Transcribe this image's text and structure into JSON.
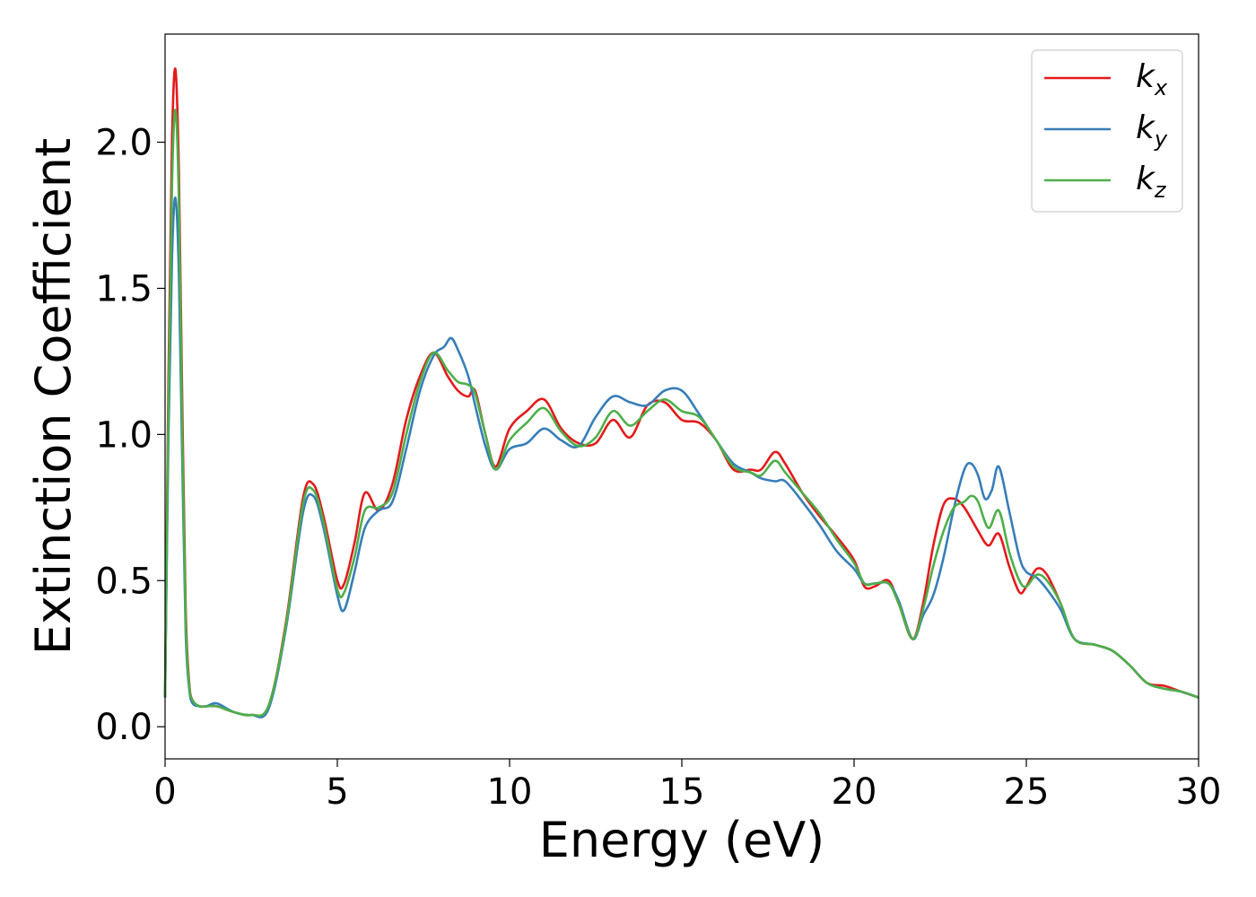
{
  "chart_data": {
    "type": "line",
    "xlabel": "Energy (eV)",
    "ylabel": "Extinction Coefficient",
    "xlim": [
      0,
      30
    ],
    "ylim": [
      -0.11,
      2.37
    ],
    "xticks": [
      0,
      5,
      10,
      15,
      20,
      25,
      30
    ],
    "xtick_labels": [
      "0",
      "5",
      "10",
      "15",
      "20",
      "25",
      "30"
    ],
    "yticks": [
      0.0,
      0.5,
      1.0,
      1.5,
      2.0
    ],
    "ytick_labels": [
      "0.0",
      "0.5",
      "1.0",
      "1.5",
      "2.0"
    ],
    "grid": false,
    "legend_position": "top-right",
    "series": [
      {
        "name": "k",
        "subscript": "x",
        "color": "#e41a1c",
        "x": [
          0,
          0.1,
          0.2,
          0.3,
          0.4,
          0.5,
          0.6,
          0.7,
          0.8,
          1.0,
          1.2,
          1.5,
          2.0,
          2.5,
          3.0,
          3.5,
          4.0,
          4.3,
          4.6,
          5.0,
          5.2,
          5.5,
          5.8,
          6.2,
          6.6,
          7.0,
          7.4,
          7.8,
          8.2,
          8.5,
          8.8,
          9.0,
          9.3,
          9.6,
          10.0,
          10.5,
          11.0,
          11.5,
          12.0,
          12.5,
          13.0,
          13.5,
          14.0,
          14.5,
          15.0,
          15.5,
          16.0,
          16.5,
          17.0,
          17.3,
          17.7,
          18.0,
          18.5,
          19.0,
          19.5,
          20.0,
          20.3,
          20.6,
          21.0,
          21.3,
          21.7,
          22.0,
          22.3,
          22.6,
          22.9,
          23.2,
          23.6,
          23.9,
          24.2,
          24.5,
          24.8,
          25.0,
          25.3,
          25.6,
          26.0,
          26.4,
          27.0,
          27.5,
          28.0,
          28.5,
          29.0,
          29.5,
          30.0
        ],
        "values": [
          0.1,
          1.2,
          2.0,
          2.25,
          1.9,
          1.1,
          0.4,
          0.15,
          0.09,
          0.07,
          0.07,
          0.07,
          0.05,
          0.04,
          0.07,
          0.35,
          0.78,
          0.83,
          0.72,
          0.5,
          0.49,
          0.63,
          0.8,
          0.74,
          0.83,
          1.05,
          1.2,
          1.28,
          1.2,
          1.15,
          1.13,
          1.15,
          1.0,
          0.89,
          1.02,
          1.08,
          1.12,
          1.02,
          0.97,
          0.97,
          1.05,
          0.99,
          1.1,
          1.11,
          1.05,
          1.04,
          0.98,
          0.88,
          0.88,
          0.88,
          0.94,
          0.9,
          0.8,
          0.72,
          0.65,
          0.57,
          0.48,
          0.48,
          0.5,
          0.42,
          0.3,
          0.42,
          0.62,
          0.76,
          0.78,
          0.75,
          0.67,
          0.62,
          0.66,
          0.55,
          0.46,
          0.48,
          0.54,
          0.52,
          0.42,
          0.3,
          0.28,
          0.26,
          0.21,
          0.15,
          0.14,
          0.12,
          0.1
        ]
      },
      {
        "name": "k",
        "subscript": "y",
        "color": "#377eb8",
        "x": [
          0,
          0.1,
          0.2,
          0.3,
          0.4,
          0.5,
          0.6,
          0.7,
          0.8,
          1.0,
          1.2,
          1.5,
          2.0,
          2.5,
          3.0,
          3.5,
          4.0,
          4.3,
          4.6,
          5.0,
          5.2,
          5.5,
          5.8,
          6.2,
          6.6,
          7.0,
          7.4,
          7.8,
          8.1,
          8.3,
          8.5,
          8.8,
          9.0,
          9.3,
          9.6,
          10.0,
          10.5,
          11.0,
          11.5,
          12.0,
          12.5,
          13.0,
          13.5,
          14.0,
          14.5,
          15.0,
          15.5,
          16.0,
          16.5,
          17.0,
          17.3,
          17.7,
          18.0,
          18.5,
          19.0,
          19.5,
          20.0,
          20.3,
          20.6,
          21.0,
          21.3,
          21.7,
          22.0,
          22.3,
          22.6,
          22.9,
          23.2,
          23.4,
          23.6,
          23.8,
          24.0,
          24.2,
          24.5,
          24.8,
          25.0,
          25.3,
          25.6,
          26.0,
          26.4,
          27.0,
          27.5,
          28.0,
          28.5,
          29.0,
          29.5,
          30.0
        ],
        "values": [
          0.1,
          1.0,
          1.6,
          1.81,
          1.55,
          0.9,
          0.32,
          0.13,
          0.08,
          0.07,
          0.07,
          0.08,
          0.05,
          0.04,
          0.06,
          0.33,
          0.73,
          0.79,
          0.68,
          0.45,
          0.4,
          0.53,
          0.68,
          0.74,
          0.77,
          0.95,
          1.15,
          1.27,
          1.3,
          1.33,
          1.29,
          1.2,
          1.1,
          0.96,
          0.88,
          0.95,
          0.97,
          1.02,
          0.98,
          0.96,
          1.06,
          1.13,
          1.11,
          1.1,
          1.15,
          1.15,
          1.07,
          0.98,
          0.9,
          0.87,
          0.85,
          0.84,
          0.84,
          0.77,
          0.69,
          0.6,
          0.54,
          0.49,
          0.49,
          0.49,
          0.43,
          0.3,
          0.38,
          0.45,
          0.58,
          0.75,
          0.88,
          0.9,
          0.86,
          0.78,
          0.81,
          0.89,
          0.74,
          0.58,
          0.53,
          0.51,
          0.47,
          0.4,
          0.3,
          0.28,
          0.26,
          0.21,
          0.15,
          0.13,
          0.12,
          0.1
        ]
      },
      {
        "name": "k",
        "subscript": "z",
        "color": "#4daf4a",
        "x": [
          0,
          0.1,
          0.2,
          0.3,
          0.4,
          0.5,
          0.6,
          0.7,
          0.8,
          1.0,
          1.2,
          1.5,
          2.0,
          2.5,
          3.0,
          3.5,
          4.0,
          4.3,
          4.6,
          5.0,
          5.2,
          5.5,
          5.8,
          6.2,
          6.6,
          7.0,
          7.4,
          7.8,
          8.2,
          8.5,
          8.8,
          9.0,
          9.3,
          9.6,
          10.0,
          10.5,
          11.0,
          11.5,
          12.0,
          12.5,
          13.0,
          13.5,
          14.0,
          14.5,
          15.0,
          15.5,
          16.0,
          16.5,
          17.0,
          17.3,
          17.7,
          18.0,
          18.5,
          19.0,
          19.5,
          20.0,
          20.3,
          20.6,
          21.0,
          21.3,
          21.7,
          22.0,
          22.3,
          22.6,
          22.9,
          23.2,
          23.4,
          23.6,
          23.9,
          24.2,
          24.5,
          24.8,
          25.0,
          25.3,
          25.6,
          26.0,
          26.4,
          27.0,
          27.5,
          28.0,
          28.5,
          29.0,
          29.5,
          30.0
        ],
        "values": [
          0.1,
          1.1,
          1.85,
          2.11,
          1.8,
          1.0,
          0.36,
          0.14,
          0.09,
          0.07,
          0.07,
          0.07,
          0.05,
          0.04,
          0.07,
          0.34,
          0.76,
          0.81,
          0.7,
          0.47,
          0.46,
          0.58,
          0.74,
          0.75,
          0.8,
          1.0,
          1.18,
          1.28,
          1.22,
          1.18,
          1.17,
          1.14,
          1.0,
          0.88,
          0.98,
          1.04,
          1.09,
          1.01,
          0.96,
          0.99,
          1.08,
          1.03,
          1.08,
          1.12,
          1.08,
          1.06,
          0.98,
          0.89,
          0.87,
          0.86,
          0.91,
          0.87,
          0.8,
          0.73,
          0.64,
          0.56,
          0.49,
          0.49,
          0.49,
          0.42,
          0.3,
          0.4,
          0.55,
          0.67,
          0.75,
          0.77,
          0.79,
          0.77,
          0.68,
          0.74,
          0.6,
          0.5,
          0.48,
          0.52,
          0.5,
          0.42,
          0.3,
          0.28,
          0.26,
          0.21,
          0.15,
          0.13,
          0.12,
          0.1
        ]
      }
    ]
  }
}
